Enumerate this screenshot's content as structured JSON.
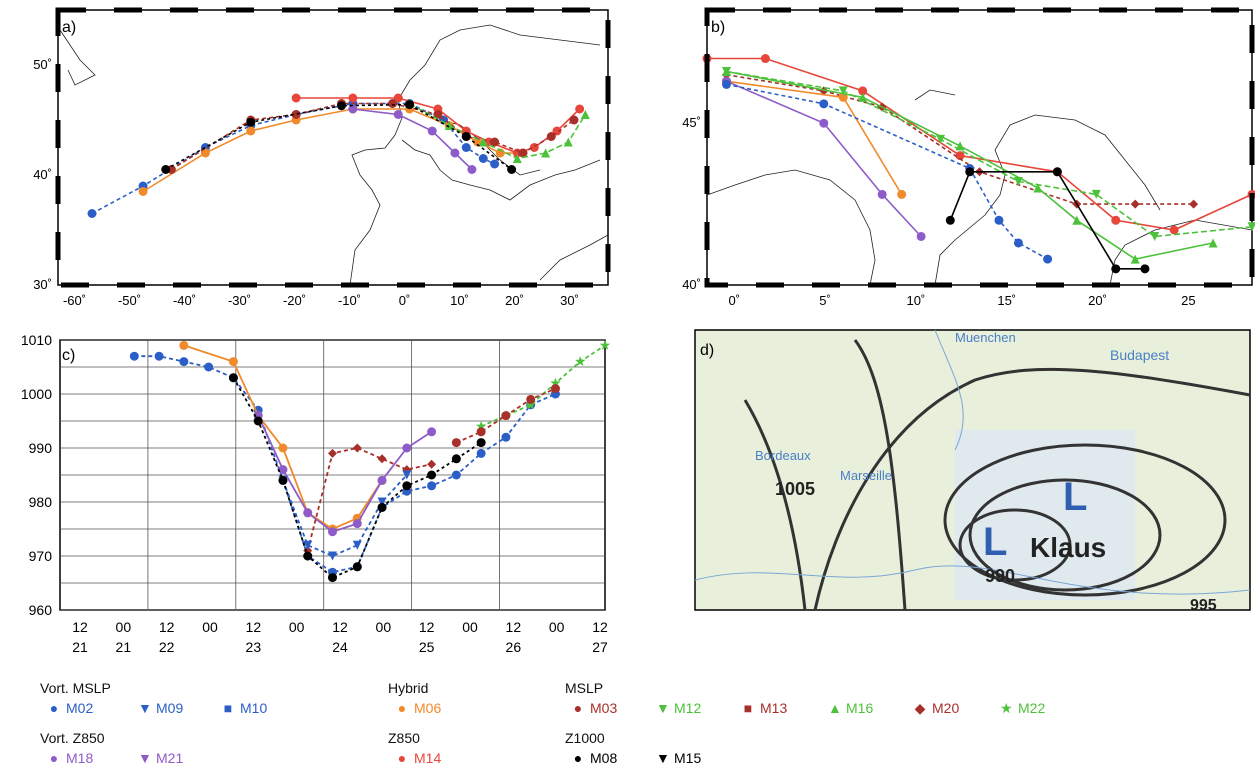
{
  "chart_data": [
    {
      "type": "scatter",
      "panel_label": "a)",
      "xlim": [
        -62,
        35
      ],
      "ylim": [
        30,
        55
      ],
      "x_ticks": [
        "-60˚",
        "-50˚",
        "-40˚",
        "-30˚",
        "-20˚",
        "-10˚",
        "0˚",
        "10˚",
        "20˚",
        "30˚"
      ],
      "y_ticks": [
        "30˚",
        "40˚",
        "50˚"
      ],
      "series": [
        {
          "name": "M02",
          "color": "#2b5fc7",
          "marker": "circle",
          "dash": "4,3",
          "points": [
            [
              -56,
              36.5
            ],
            [
              -47,
              39
            ],
            [
              -36,
              42.5
            ],
            [
              -28,
              44.5
            ],
            [
              -20,
              45.5
            ],
            [
              -10,
              46.5
            ],
            [
              0,
              46.5
            ],
            [
              6,
              45
            ],
            [
              10,
              42.5
            ],
            [
              13,
              41.5
            ],
            [
              15,
              41
            ]
          ]
        },
        {
          "name": "M06",
          "color": "#f08a2a",
          "marker": "circle",
          "dash": "",
          "points": [
            [
              -47,
              38.5
            ],
            [
              -36,
              42
            ],
            [
              -28,
              44
            ],
            [
              -20,
              45
            ],
            [
              -10,
              46
            ],
            [
              0,
              46
            ],
            [
              7,
              44.5
            ],
            [
              12,
              43
            ],
            [
              16,
              42
            ],
            [
              20,
              42
            ]
          ]
        },
        {
          "name": "M14",
          "color": "#e8463a",
          "marker": "circle",
          "dash": "",
          "points": [
            [
              -20,
              47
            ],
            [
              -10,
              47
            ],
            [
              -2,
              47
            ],
            [
              5,
              46
            ],
            [
              10,
              44
            ],
            [
              14,
              43
            ],
            [
              19,
              42
            ],
            [
              22,
              42.5
            ],
            [
              26,
              44
            ],
            [
              30,
              46
            ]
          ]
        },
        {
          "name": "M03",
          "color": "#a8302a",
          "marker": "circle",
          "dash": "4,3",
          "points": [
            [
              -42,
              40.5
            ],
            [
              -28,
              45
            ],
            [
              -20,
              45.5
            ],
            [
              -12,
              46.5
            ],
            [
              -3,
              46.5
            ],
            [
              5,
              45.5
            ],
            [
              10,
              43.5
            ],
            [
              15,
              43
            ],
            [
              20,
              42
            ],
            [
              25,
              43.5
            ],
            [
              29,
              45
            ]
          ]
        },
        {
          "name": "M18",
          "color": "#8e5cc8",
          "marker": "circle",
          "dash": "",
          "points": [
            [
              -10,
              46
            ],
            [
              -2,
              45.5
            ],
            [
              4,
              44
            ],
            [
              8,
              42
            ],
            [
              11,
              40.5
            ]
          ]
        },
        {
          "name": "M16",
          "color": "#4cc23a",
          "marker": "triangle",
          "dash": "6,3",
          "points": [
            [
              0,
              46.5
            ],
            [
              7,
              44.5
            ],
            [
              13,
              43
            ],
            [
              19,
              41.5
            ],
            [
              24,
              42
            ],
            [
              28,
              43
            ],
            [
              31,
              45.5
            ]
          ]
        },
        {
          "name": "M08",
          "color": "#000000",
          "marker": "circle",
          "dash": "3,3",
          "points": [
            [
              -43,
              40.5
            ],
            [
              -28,
              44.8
            ],
            [
              -12,
              46.3
            ],
            [
              0,
              46.4
            ],
            [
              10,
              43.5
            ],
            [
              18,
              40.5
            ]
          ]
        }
      ]
    },
    {
      "type": "scatter",
      "panel_label": "b)",
      "xlim": [
        -3,
        25
      ],
      "ylim": [
        40,
        48.5
      ],
      "x_ticks": [
        "0˚",
        "5˚",
        "10˚",
        "15˚",
        "20˚",
        "25"
      ],
      "y_ticks": [
        "40˚",
        "45˚"
      ],
      "series": [
        {
          "name": "M14",
          "color": "#e8463a",
          "marker": "circle",
          "dash": "",
          "points": [
            [
              -3,
              47
            ],
            [
              0,
              47
            ],
            [
              5,
              46
            ],
            [
              10,
              44
            ],
            [
              15,
              43.5
            ],
            [
              18,
              42
            ],
            [
              21,
              41.7
            ],
            [
              25,
              42.8
            ]
          ]
        },
        {
          "name": "M20",
          "color": "#a8302a",
          "marker": "diamond",
          "dash": "4,3",
          "points": [
            [
              -2,
              46.5
            ],
            [
              3,
              46
            ],
            [
              6,
              45.5
            ],
            [
              11,
              43.5
            ],
            [
              16,
              42.5
            ],
            [
              19,
              42.5
            ],
            [
              22,
              42.5
            ]
          ]
        },
        {
          "name": "M06",
          "color": "#f08a2a",
          "marker": "circle",
          "dash": "",
          "points": [
            [
              -2,
              46.3
            ],
            [
              4,
              45.8
            ],
            [
              7,
              42.8
            ]
          ]
        },
        {
          "name": "M18",
          "color": "#8e5cc8",
          "marker": "circle",
          "dash": "",
          "points": [
            [
              -2,
              46.3
            ],
            [
              3,
              45
            ],
            [
              6,
              42.8
            ],
            [
              8,
              41.5
            ]
          ]
        },
        {
          "name": "M02",
          "color": "#2b5fc7",
          "marker": "circle",
          "dash": "4,3",
          "points": [
            [
              -2,
              46.2
            ],
            [
              3,
              45.6
            ],
            [
              10.5,
              43.6
            ],
            [
              12,
              42
            ],
            [
              13,
              41.3
            ],
            [
              14.5,
              40.8
            ]
          ]
        },
        {
          "name": "M12",
          "color": "#4cc23a",
          "marker": "triangle-down",
          "dash": "6,3",
          "points": [
            [
              -2,
              46.6
            ],
            [
              4,
              46
            ],
            [
              9,
              44.5
            ],
            [
              13,
              43.2
            ],
            [
              17,
              42.8
            ],
            [
              20,
              41.5
            ],
            [
              25,
              41.8
            ]
          ]
        },
        {
          "name": "M16",
          "color": "#4cc23a",
          "marker": "triangle",
          "dash": "",
          "points": [
            [
              -2,
              46.6
            ],
            [
              5,
              45.8
            ],
            [
              10,
              44.3
            ],
            [
              14,
              43
            ],
            [
              16,
              42
            ],
            [
              19,
              40.8
            ],
            [
              23,
              41.3
            ]
          ]
        },
        {
          "name": "M08",
          "color": "#000000",
          "marker": "circle",
          "dash": "",
          "points": [
            [
              9.5,
              42
            ],
            [
              10.5,
              43.5
            ],
            [
              15,
              43.5
            ],
            [
              18,
              40.5
            ],
            [
              19.5,
              40.5
            ]
          ]
        }
      ]
    },
    {
      "type": "line",
      "panel_label": "c)",
      "xlim": [
        -3,
        19
      ],
      "ylim": [
        960,
        1010
      ],
      "y_ticks": [
        960,
        970,
        980,
        990,
        1000,
        1010
      ],
      "x_tick_top": [
        "12",
        "00",
        "12",
        "00",
        "12",
        "00",
        "12",
        "00",
        "12",
        "00",
        "12",
        "00",
        "12"
      ],
      "x_tick_bottom": [
        "21",
        "21",
        "22",
        "",
        "23",
        "",
        "24",
        "",
        "25",
        "",
        "26",
        "",
        "27"
      ],
      "series": [
        {
          "name": "M02",
          "color": "#2b5fc7",
          "marker": "circle",
          "dash": "4,3",
          "x": [
            0,
            1,
            2,
            3,
            4,
            5,
            6,
            7,
            8,
            9,
            10,
            11,
            12,
            13,
            14,
            15,
            16,
            17
          ],
          "y": [
            1007,
            1007,
            1006,
            1005,
            1003,
            997,
            984,
            970,
            967,
            968,
            979,
            982,
            983,
            985,
            989,
            992,
            998,
            1000
          ]
        },
        {
          "name": "M06",
          "color": "#f08a2a",
          "marker": "circle",
          "dash": "",
          "x": [
            2,
            4,
            5,
            6,
            7,
            8,
            9,
            10
          ],
          "y": [
            1009,
            1006,
            996,
            990,
            978,
            975,
            977,
            984
          ]
        },
        {
          "name": "M18",
          "color": "#8e5cc8",
          "marker": "circle",
          "dash": "",
          "x": [
            5,
            6,
            7,
            8,
            9,
            10,
            11,
            12
          ],
          "y": [
            996,
            986,
            978,
            974.5,
            976,
            984,
            990,
            993
          ]
        },
        {
          "name": "M20",
          "color": "#a8302a",
          "marker": "diamond",
          "dash": "4,3",
          "x": [
            7,
            8,
            9,
            10,
            11,
            12
          ],
          "y": [
            971,
            989,
            990,
            988,
            986,
            987
          ]
        },
        {
          "name": "M09",
          "color": "#2b5fc7",
          "marker": "triangle-down",
          "dash": "4,3",
          "x": [
            6,
            7,
            8,
            9,
            10,
            11
          ],
          "y": [
            984,
            972,
            970,
            972,
            980,
            985
          ]
        },
        {
          "name": "M22",
          "color": "#4cc23a",
          "marker": "star",
          "dash": "4,3",
          "x": [
            14,
            15,
            16,
            17,
            18,
            19
          ],
          "y": [
            994,
            996,
            998,
            1002,
            1006,
            1009
          ]
        },
        {
          "name": "M08",
          "color": "#000000",
          "marker": "circle",
          "dash": "3,3",
          "x": [
            4,
            5,
            6,
            7,
            8,
            9,
            10,
            11,
            12,
            13,
            14
          ],
          "y": [
            1003,
            995,
            984,
            970,
            966,
            968,
            979,
            983,
            985,
            988,
            991
          ]
        },
        {
          "name": "M03",
          "color": "#a8302a",
          "marker": "circle",
          "dash": "4,3",
          "x": [
            13,
            14,
            15,
            16,
            17
          ],
          "y": [
            991,
            993,
            996,
            999,
            1001
          ]
        }
      ]
    }
  ],
  "panel_d": {
    "label": "d)",
    "place_labels": [
      "Budapest",
      "Muenchen",
      "Bordeaux",
      "Marseille"
    ],
    "isobar_values": [
      "1005",
      "990",
      "995"
    ],
    "storm_name": "Klaus",
    "low_letter": "L"
  },
  "legend": {
    "groups": [
      {
        "header": "Vort. MSLP",
        "items": [
          {
            "label": "M02",
            "color": "#2b5fc7",
            "symbol": "●"
          },
          {
            "label": "M09",
            "color": "#2b5fc7",
            "symbol": "▼"
          },
          {
            "label": "M10",
            "color": "#2b5fc7",
            "symbol": "■"
          }
        ]
      },
      {
        "header": "Vort. Z850",
        "items": [
          {
            "label": "M18",
            "color": "#8e5cc8",
            "symbol": "●"
          },
          {
            "label": "M21",
            "color": "#8e5cc8",
            "symbol": "▼"
          }
        ]
      },
      {
        "header": "Hybrid",
        "items": [
          {
            "label": "M06",
            "color": "#f08a2a",
            "symbol": "●"
          }
        ]
      },
      {
        "header": "Z850",
        "items": [
          {
            "label": "M14",
            "color": "#e8463a",
            "symbol": "●"
          }
        ]
      },
      {
        "header": "MSLP",
        "items": [
          {
            "label": "M03",
            "color": "#a8302a",
            "symbol": "●"
          },
          {
            "label": "M12",
            "color": "#4cc23a",
            "symbol": "▼"
          },
          {
            "label": "M13",
            "color": "#a8302a",
            "symbol": "■"
          },
          {
            "label": "M16",
            "color": "#4cc23a",
            "symbol": "▲"
          },
          {
            "label": "M20",
            "color": "#a8302a",
            "symbol": "◆"
          },
          {
            "label": "M22",
            "color": "#4cc23a",
            "symbol": "★"
          }
        ]
      },
      {
        "header": "Z1000",
        "items": [
          {
            "label": "M08",
            "color": "#000000",
            "symbol": "●"
          },
          {
            "label": "M15",
            "color": "#000000",
            "symbol": "▼"
          }
        ]
      }
    ]
  }
}
